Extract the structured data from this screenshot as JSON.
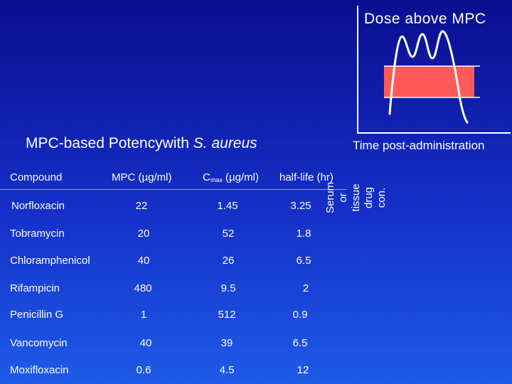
{
  "title": {
    "prefix": "MPC-based Potencywith ",
    "organism": "S. aureus"
  },
  "table": {
    "headers": {
      "compound": "Compound",
      "mpc": "MPC (µg/ml)",
      "cmax_prefix": "C",
      "cmax_sub": "max",
      "cmax_suffix": " (µg/ml)",
      "halflife": "half-life (hr)"
    },
    "rows": [
      {
        "compound": "Norfloxacin",
        "mpc": "22",
        "cmax": "1.45",
        "halflife": "3.25"
      },
      {
        "compound": "Tobramycin",
        "mpc": "20",
        "cmax": "52",
        "halflife": "1.8"
      },
      {
        "compound": "Chloramphenicol",
        "mpc": "40",
        "cmax": "26",
        "halflife": "6.5"
      },
      {
        "compound": "Rifampicin",
        "mpc": "480",
        "cmax": "9.5",
        "halflife": "2"
      },
      {
        "compound": "Penicillin G",
        "mpc": "1",
        "cmax": "512",
        "halflife": "0.9"
      },
      {
        "compound": "Vancomycin",
        "mpc": "40",
        "cmax": "39",
        "halflife": "6.5"
      },
      {
        "compound": "Moxifloxacin",
        "mpc": "0.6",
        "cmax": "4.5",
        "halflife": "12"
      }
    ]
  },
  "diagram": {
    "y_label_line1": "Serum or tissue",
    "y_label_line2": "drug con.",
    "dose_label": "Dose above MPC",
    "x_label": "Time post-administration"
  },
  "colors": {
    "window_fill": "#ff5a5a",
    "background": "#1430c8",
    "text": "#ffffff"
  }
}
